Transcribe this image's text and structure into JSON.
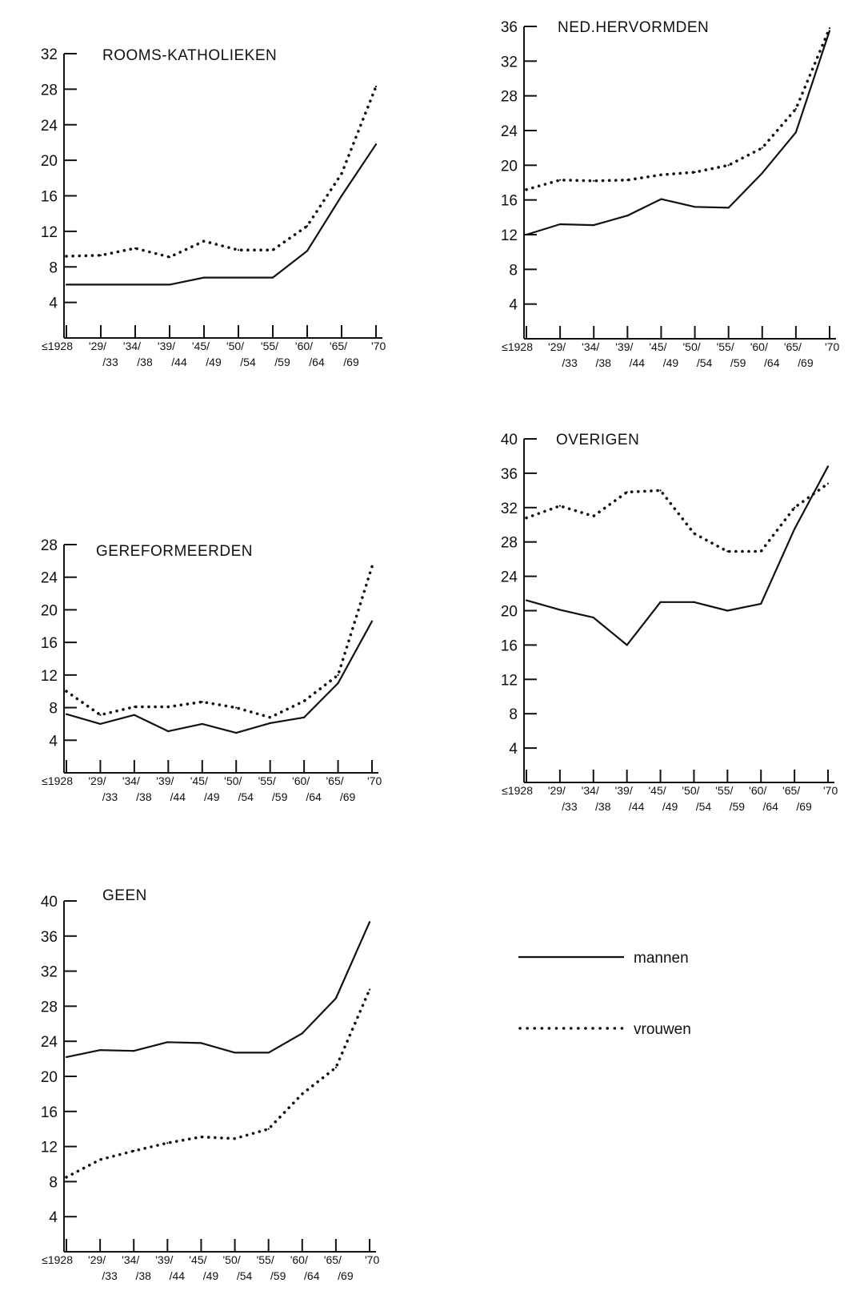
{
  "figure": {
    "legend": [
      {
        "key": "mannen",
        "label": "mannen",
        "style": "solid"
      },
      {
        "key": "vrouwen",
        "label": "vrouwen",
        "style": "dotted"
      }
    ]
  },
  "chart_data": [
    {
      "type": "line",
      "title": "ROOMS-KATHOLIEKEN",
      "xlabel": "",
      "ylabel": "",
      "categories": [
        "≤1928",
        "'29/33",
        "'34/38",
        "'39/44",
        "'45/49",
        "'50/54",
        "'55/59",
        "'60/64",
        "'65/69",
        "'70"
      ],
      "x_tick_labels": [
        {
          "top": "≤1928",
          "bottom": ""
        },
        {
          "top": "'29/",
          "bottom": "/33"
        },
        {
          "top": "'34/",
          "bottom": "/38"
        },
        {
          "top": "'39/",
          "bottom": "/44"
        },
        {
          "top": "'45/",
          "bottom": "/49"
        },
        {
          "top": "'50/",
          "bottom": "/54"
        },
        {
          "top": "'55/",
          "bottom": "/59"
        },
        {
          "top": "'60/",
          "bottom": "/64"
        },
        {
          "top": "'65/",
          "bottom": "/69"
        },
        {
          "top": "'70",
          "bottom": ""
        }
      ],
      "ylim": [
        0,
        32
      ],
      "yticks": [
        4,
        8,
        12,
        16,
        20,
        24,
        28,
        32
      ],
      "grid": false,
      "series": [
        {
          "name": "mannen",
          "style": "solid",
          "values": [
            6,
            6,
            6,
            6,
            6.8,
            6.8,
            6.8,
            9.8,
            16,
            21.8
          ]
        },
        {
          "name": "vrouwen",
          "style": "dotted",
          "values": [
            9.2,
            9.3,
            10.1,
            9.1,
            10.9,
            9.9,
            9.9,
            12.6,
            18.5,
            28.3
          ]
        }
      ]
    },
    {
      "type": "line",
      "title": "NED.HERVORMDEN",
      "xlabel": "",
      "ylabel": "",
      "categories": [
        "≤1928",
        "'29/33",
        "'34/38",
        "'39/44",
        "'45/49",
        "'50/54",
        "'55/59",
        "'60/64",
        "'65/69",
        "'70"
      ],
      "x_tick_labels": [
        {
          "top": "≤1928",
          "bottom": ""
        },
        {
          "top": "'29/",
          "bottom": "/33"
        },
        {
          "top": "'34/",
          "bottom": "/38"
        },
        {
          "top": "'39/",
          "bottom": "/44"
        },
        {
          "top": "'45/",
          "bottom": "/49"
        },
        {
          "top": "'50/",
          "bottom": "/54"
        },
        {
          "top": "'55/",
          "bottom": "/59"
        },
        {
          "top": "'60/",
          "bottom": "/64"
        },
        {
          "top": "'65/",
          "bottom": "/69"
        },
        {
          "top": "'70",
          "bottom": ""
        }
      ],
      "ylim": [
        0,
        36
      ],
      "yticks": [
        4,
        8,
        12,
        16,
        20,
        24,
        28,
        32,
        36
      ],
      "grid": false,
      "series": [
        {
          "name": "mannen",
          "style": "solid",
          "values": [
            12,
            13.2,
            13.1,
            14.2,
            16.1,
            15.2,
            15.1,
            19.1,
            23.8,
            35.5
          ]
        },
        {
          "name": "vrouwen",
          "style": "dotted",
          "values": [
            17.2,
            18.3,
            18.2,
            18.3,
            18.9,
            19.2,
            20,
            22,
            26.5,
            35.8
          ]
        }
      ]
    },
    {
      "type": "line",
      "title": "GEREFORMEERDEN",
      "xlabel": "",
      "ylabel": "",
      "categories": [
        "≤1928",
        "'29/33",
        "'34/38",
        "'39/44",
        "'45/49",
        "'50/54",
        "'55/59",
        "'60/64",
        "'65/69",
        "'70"
      ],
      "x_tick_labels": [
        {
          "top": "≤1928",
          "bottom": ""
        },
        {
          "top": "'29/",
          "bottom": "/33"
        },
        {
          "top": "'34/",
          "bottom": "/38"
        },
        {
          "top": "'39/",
          "bottom": "/44"
        },
        {
          "top": "'45/",
          "bottom": "/49"
        },
        {
          "top": "'50/",
          "bottom": "/54"
        },
        {
          "top": "'55/",
          "bottom": "/59"
        },
        {
          "top": "'60/",
          "bottom": "/64"
        },
        {
          "top": "'65/",
          "bottom": "/69"
        },
        {
          "top": "'70",
          "bottom": ""
        }
      ],
      "ylim": [
        0,
        28
      ],
      "yticks": [
        4,
        8,
        12,
        16,
        20,
        24,
        28
      ],
      "grid": false,
      "series": [
        {
          "name": "mannen",
          "style": "solid",
          "values": [
            7.2,
            6,
            7.1,
            5.1,
            6,
            4.9,
            6.1,
            6.8,
            11,
            18.6
          ]
        },
        {
          "name": "vrouwen",
          "style": "dotted",
          "values": [
            10,
            7.1,
            8.1,
            8.1,
            8.7,
            8,
            6.8,
            8.8,
            12,
            25.3
          ]
        }
      ]
    },
    {
      "type": "line",
      "title": "OVERIGEN",
      "xlabel": "",
      "ylabel": "",
      "categories": [
        "≤1928",
        "'29/33",
        "'34/38",
        "'39/44",
        "'45/49",
        "'50/54",
        "'55/59",
        "'60/64",
        "'65/69",
        "'70"
      ],
      "x_tick_labels": [
        {
          "top": "≤1928",
          "bottom": ""
        },
        {
          "top": "'29/",
          "bottom": "/33"
        },
        {
          "top": "'34/",
          "bottom": "/38"
        },
        {
          "top": "'39/",
          "bottom": "/44"
        },
        {
          "top": "'45/",
          "bottom": "/49"
        },
        {
          "top": "'50/",
          "bottom": "/54"
        },
        {
          "top": "'55/",
          "bottom": "/59"
        },
        {
          "top": "'60/",
          "bottom": "/64"
        },
        {
          "top": "'65/",
          "bottom": "/69"
        },
        {
          "top": "'70",
          "bottom": ""
        }
      ],
      "ylim": [
        0,
        40
      ],
      "yticks": [
        4,
        8,
        12,
        16,
        20,
        24,
        28,
        32,
        36,
        40
      ],
      "grid": false,
      "series": [
        {
          "name": "mannen",
          "style": "solid",
          "values": [
            21.2,
            20.1,
            19.2,
            16,
            21,
            21,
            20,
            20.8,
            29.5,
            36.8
          ]
        },
        {
          "name": "vrouwen",
          "style": "dotted",
          "values": [
            30.8,
            32.2,
            31,
            33.8,
            34,
            29,
            26.9,
            26.9,
            32,
            34.8
          ]
        }
      ]
    },
    {
      "type": "line",
      "title": "GEEN",
      "xlabel": "",
      "ylabel": "",
      "categories": [
        "≤1928",
        "'29/33",
        "'34/38",
        "'39/44",
        "'45/49",
        "'50/54",
        "'55/59",
        "'60/64",
        "'65/69",
        "'70"
      ],
      "x_tick_labels": [
        {
          "top": "≤1928",
          "bottom": ""
        },
        {
          "top": "'29/",
          "bottom": "/33"
        },
        {
          "top": "'34/",
          "bottom": "/38"
        },
        {
          "top": "'39/",
          "bottom": "/44"
        },
        {
          "top": "'45/",
          "bottom": "/49"
        },
        {
          "top": "'50/",
          "bottom": "/54"
        },
        {
          "top": "'55/",
          "bottom": "/59"
        },
        {
          "top": "'60/",
          "bottom": "/64"
        },
        {
          "top": "'65/",
          "bottom": "/69"
        },
        {
          "top": "'70",
          "bottom": ""
        }
      ],
      "ylim": [
        0,
        40
      ],
      "yticks": [
        4,
        8,
        12,
        16,
        20,
        24,
        28,
        32,
        36,
        40
      ],
      "grid": false,
      "series": [
        {
          "name": "mannen",
          "style": "solid",
          "values": [
            22.2,
            23,
            22.9,
            23.9,
            23.8,
            22.7,
            22.7,
            24.9,
            28.9,
            37.6
          ]
        },
        {
          "name": "vrouwen",
          "style": "dotted",
          "values": [
            8.5,
            10.5,
            11.5,
            12.4,
            13.1,
            12.9,
            14,
            18,
            21,
            29.9
          ]
        }
      ]
    }
  ]
}
